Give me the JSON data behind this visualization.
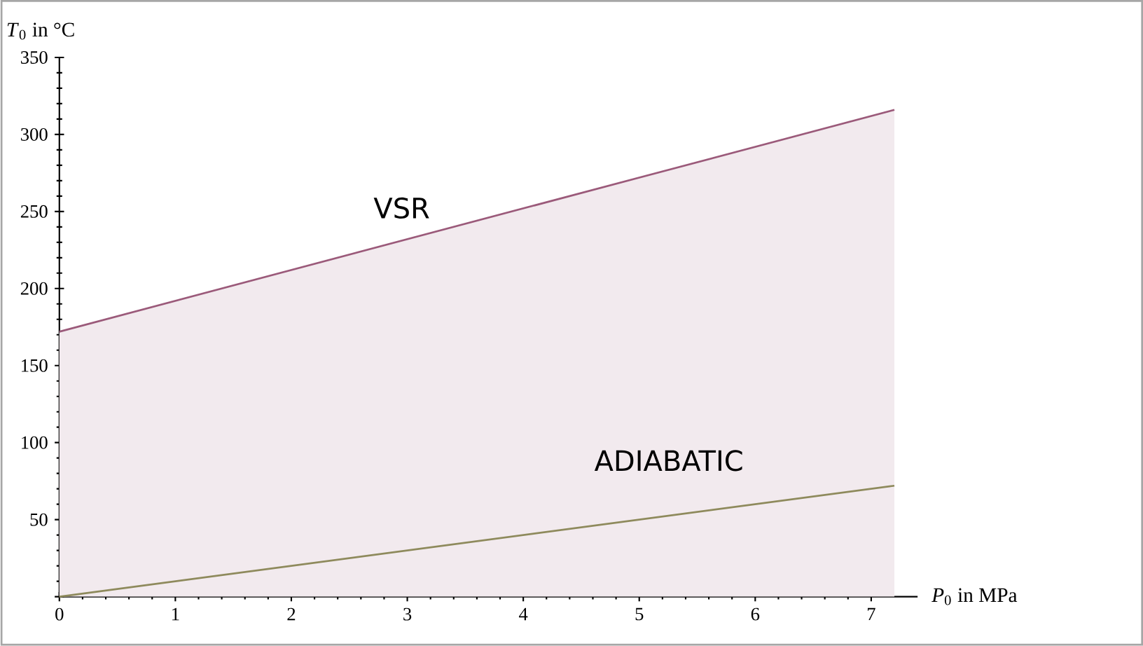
{
  "chart_data": {
    "type": "line",
    "xlabel": "*P*$_{0}$ in MPa",
    "ylabel": "*T*$_{0}$ in °C",
    "x": [
      0,
      7.2
    ],
    "series": [
      {
        "type": "area",
        "name": "VSR",
        "color": "#9b5a7a",
        "values": [
          172,
          316
        ]
      },
      {
        "name": "ADIABATIC",
        "color": "#8e8a5c",
        "values": [
          0,
          72
        ]
      }
    ],
    "xlim": [
      0,
      7.4
    ],
    "ylim": [
      0,
      350
    ],
    "xticks": [
      0,
      1,
      2,
      3,
      4,
      5,
      6,
      7
    ],
    "yticks": [
      {
        "value": 0,
        "label": null
      },
      50,
      100,
      150,
      200,
      250,
      300,
      350
    ],
    "grid": false,
    "marker": "none",
    "line_style": "solid"
  }
}
